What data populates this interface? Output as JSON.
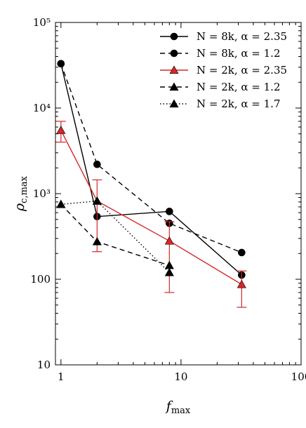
{
  "chart_data": {
    "type": "line",
    "title": "",
    "xlabel": "f_max",
    "ylabel": "ρ_c,max",
    "xscale": "log",
    "yscale": "log",
    "xlim": [
      0.9,
      100
    ],
    "ylim": [
      10,
      100000
    ],
    "x_ticks": [
      1,
      10,
      100
    ],
    "x_tick_labels": [
      "1",
      "10",
      "100"
    ],
    "y_ticks": [
      10,
      100,
      1000,
      10000,
      100000
    ],
    "y_tick_labels": [
      "10",
      "100",
      "10³",
      "10⁴",
      "10⁵"
    ],
    "grid": false,
    "legend_position": "top-right",
    "series": [
      {
        "name": "N = 8k, α = 2.35",
        "color": "#000000",
        "line_style": "solid",
        "marker": "circle",
        "x": [
          1,
          2,
          8,
          32
        ],
        "y": [
          33000,
          540,
          620,
          112
        ]
      },
      {
        "name": "N = 8k, α = 1.2",
        "color": "#000000",
        "line_style": "dashed",
        "marker": "circle",
        "x": [
          1,
          2,
          8,
          32
        ],
        "y": [
          33000,
          2200,
          450,
          205
        ]
      },
      {
        "name": "N = 2k, α = 2.35",
        "color": "#d62728",
        "line_style": "solid",
        "marker": "triangle",
        "x": [
          1,
          2,
          8,
          32
        ],
        "y": [
          5500,
          820,
          280,
          87
        ],
        "error_low": [
          4000,
          210,
          70,
          47
        ],
        "error_high": [
          7000,
          1450,
          470,
          125
        ]
      },
      {
        "name": "N = 2k, α = 1.2",
        "color": "#000000",
        "line_style": "dashed",
        "marker": "triangle",
        "x": [
          1,
          2,
          8
        ],
        "y": [
          750,
          275,
          145
        ]
      },
      {
        "name": "N = 2k, α = 1.7",
        "color": "#000000",
        "line_style": "dotted",
        "marker": "triangle",
        "x": [
          1,
          2,
          8
        ],
        "y": [
          750,
          820,
          120
        ]
      }
    ]
  }
}
